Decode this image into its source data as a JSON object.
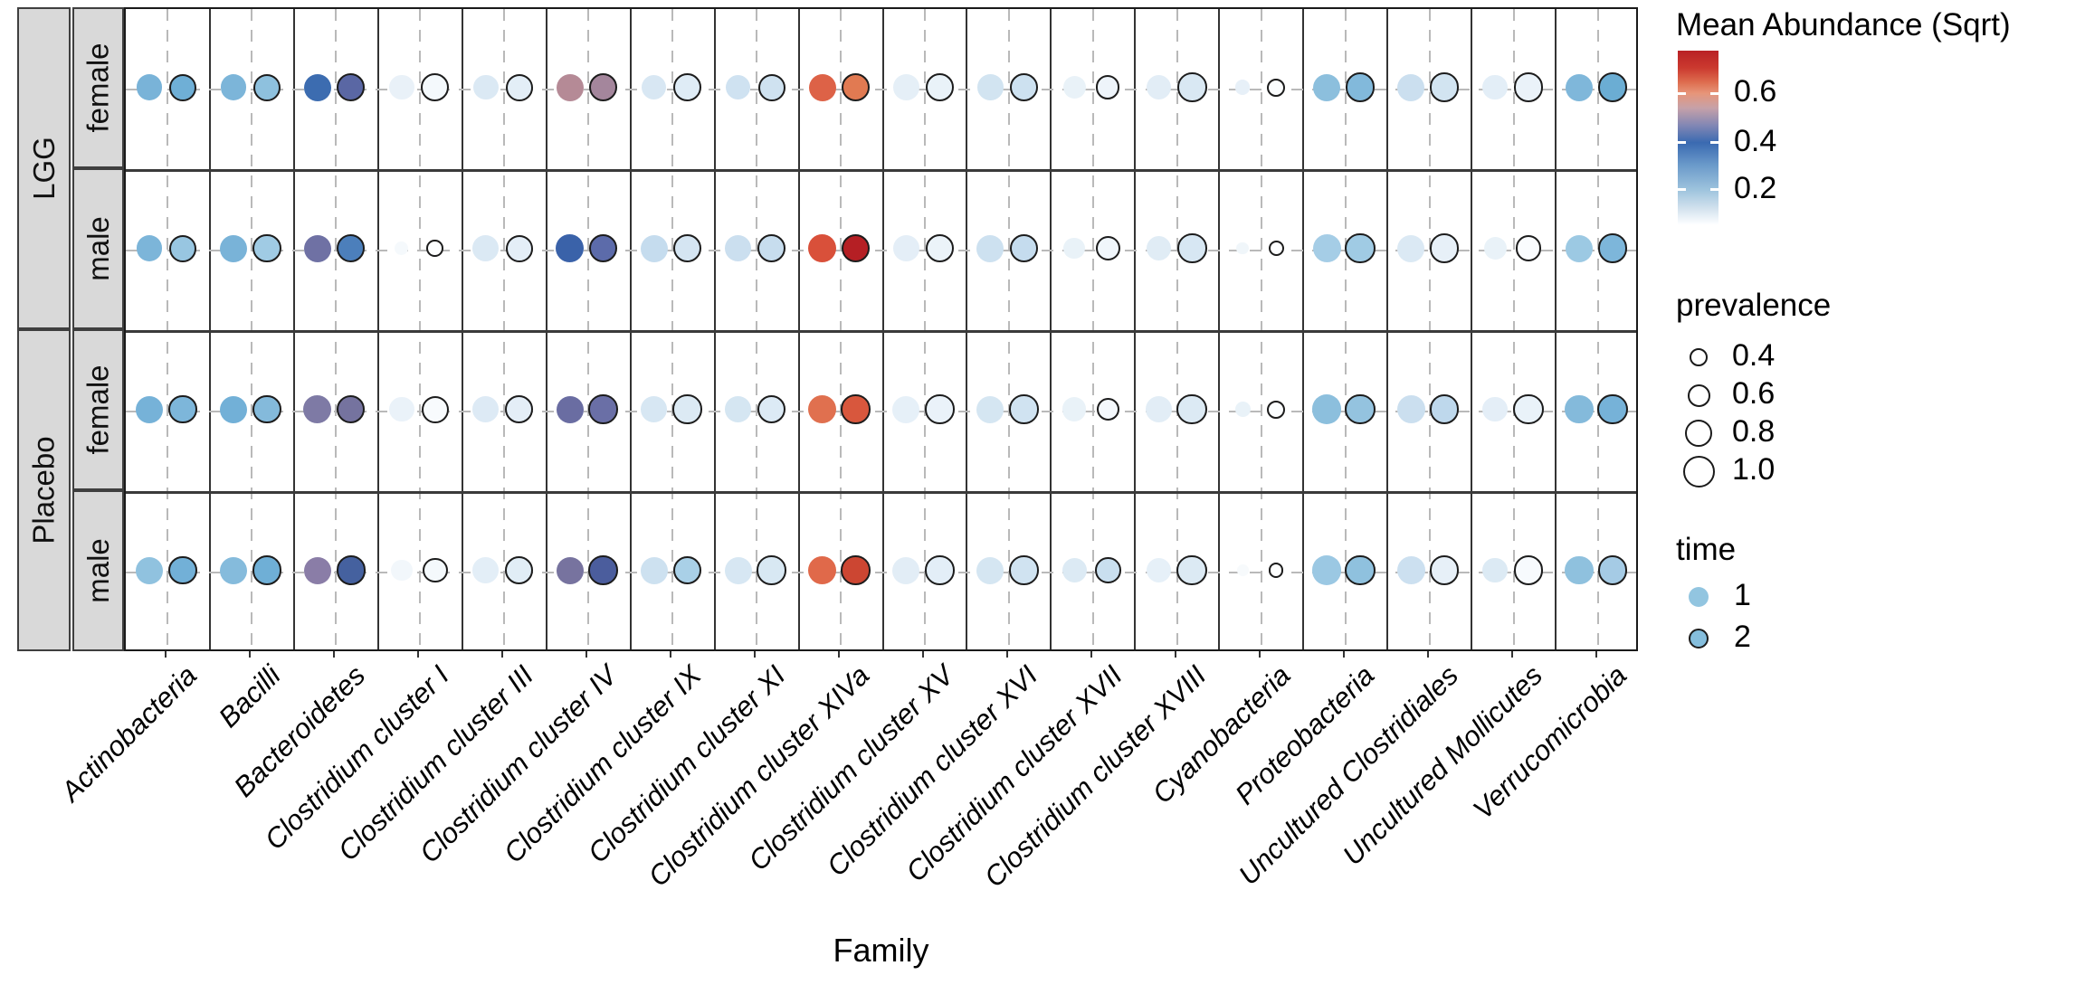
{
  "x_axis": {
    "title": "Family"
  },
  "facets": {
    "outer": [
      {
        "label": "LGG",
        "span": [
          0,
          2
        ]
      },
      {
        "label": "Placebo",
        "span": [
          2,
          4
        ]
      }
    ],
    "inner": [
      "female",
      "male",
      "female",
      "male"
    ]
  },
  "legend": {
    "abundance": {
      "title": "Mean Abundance (Sqrt)",
      "ticks": [
        {
          "label": "0.6",
          "pct": 24.5
        },
        {
          "label": "0.4",
          "pct": 53
        },
        {
          "label": "0.2",
          "pct": 80
        }
      ],
      "gradient": [
        {
          "pct": 0,
          "color": "#b92025"
        },
        {
          "pct": 10,
          "color": "#cb3a2f"
        },
        {
          "pct": 18,
          "color": "#dd6c4e"
        },
        {
          "pct": 24.5,
          "color": "#e79579"
        },
        {
          "pct": 33,
          "color": "#c6a1a8"
        },
        {
          "pct": 43,
          "color": "#8287b4"
        },
        {
          "pct": 53,
          "color": "#3a6ab1"
        },
        {
          "pct": 66,
          "color": "#6b9aca"
        },
        {
          "pct": 80,
          "color": "#9dc3dd"
        },
        {
          "pct": 91,
          "color": "#d3e2ee"
        },
        {
          "pct": 100,
          "color": "#fdfeff"
        }
      ]
    },
    "prevalence": {
      "title": "prevalence",
      "items": [
        {
          "label": "0.4",
          "value": 0.4
        },
        {
          "label": "0.6",
          "value": 0.6
        },
        {
          "label": "0.8",
          "value": 0.8
        },
        {
          "label": "1.0",
          "value": 1.0
        }
      ]
    },
    "time": {
      "title": "time",
      "items": [
        {
          "label": "1",
          "color": "#92c5e0",
          "outlined": false
        },
        {
          "label": "2",
          "color": "#85bedd",
          "outlined": true
        }
      ]
    }
  },
  "chart_data": {
    "type": "scatter",
    "subtype": "bubble-grid",
    "encoding": {
      "color": "mean_abundance_sqrt",
      "size": "prevalence",
      "outline": "time == 2"
    },
    "point_format": "t1/t2 = [abundance_sqrt_est, prevalence_est, color_hex]",
    "families": [
      "Actinobacteria",
      "Bacilli",
      "Bacteroidetes",
      "Clostridium cluster I",
      "Clostridium cluster III",
      "Clostridium cluster IV",
      "Clostridium cluster IX",
      "Clostridium cluster XI",
      "Clostridium cluster XIVa",
      "Clostridium cluster XV",
      "Clostridium cluster XVI",
      "Clostridium cluster XVII",
      "Clostridium cluster XVIII",
      "Cyanobacteria",
      "Proteobacteria",
      "Uncultured Clostridiales",
      "Uncultured Mollicutes",
      "Verrucomicrobia"
    ],
    "facet_rows": [
      {
        "group": "LGG",
        "sex": "female",
        "points": [
          {
            "t1": [
              0.3,
              0.75,
              "#79b3d8"
            ],
            "t2": [
              0.31,
              0.8,
              "#6fafd6"
            ]
          },
          {
            "t1": [
              0.3,
              0.75,
              "#7cb5d9"
            ],
            "t2": [
              0.27,
              0.8,
              "#8ec1de"
            ]
          },
          {
            "t1": [
              0.42,
              0.8,
              "#3c6cb0"
            ],
            "t2": [
              0.46,
              0.85,
              "#5a67a4"
            ]
          },
          {
            "t1": [
              0.12,
              0.7,
              "#e9f1f8"
            ],
            "t2": [
              0.07,
              0.85,
              "#f4f9fc"
            ]
          },
          {
            "t1": [
              0.15,
              0.7,
              "#dbe9f4"
            ],
            "t2": [
              0.14,
              0.8,
              "#e3eef7"
            ]
          },
          {
            "t1": [
              0.53,
              0.8,
              "#b58a96"
            ],
            "t2": [
              0.52,
              0.85,
              "#a4869c"
            ]
          },
          {
            "t1": [
              0.16,
              0.7,
              "#d8e7f3"
            ],
            "t2": [
              0.15,
              0.85,
              "#dfecf6"
            ]
          },
          {
            "t1": [
              0.18,
              0.7,
              "#cfe2f1"
            ],
            "t2": [
              0.18,
              0.8,
              "#cfe2f0"
            ]
          },
          {
            "t1": [
              0.65,
              0.8,
              "#dd6247"
            ],
            "t2": [
              0.62,
              0.85,
              "#e17a52"
            ]
          },
          {
            "t1": [
              0.13,
              0.75,
              "#e5eff7"
            ],
            "t2": [
              0.12,
              0.85,
              "#e9f2f8"
            ]
          },
          {
            "t1": [
              0.17,
              0.75,
              "#d2e4f1"
            ],
            "t2": [
              0.18,
              0.85,
              "#cde1f0"
            ]
          },
          {
            "t1": [
              0.12,
              0.6,
              "#e9f2f8"
            ],
            "t2": [
              0.1,
              0.65,
              "#eef4fa"
            ]
          },
          {
            "t1": [
              0.14,
              0.7,
              "#e2edf6"
            ],
            "t2": [
              0.16,
              0.9,
              "#d9e8f3"
            ]
          },
          {
            "t1": [
              0.12,
              0.25,
              "#e7f0f8"
            ],
            "t2": [
              0.05,
              0.4,
              "#fbfdfe"
            ]
          },
          {
            "t1": [
              0.28,
              0.8,
              "#8cbfdd"
            ],
            "t2": [
              0.29,
              0.9,
              "#82b9db"
            ]
          },
          {
            "t1": [
              0.18,
              0.8,
              "#cbdfef"
            ],
            "t2": [
              0.17,
              0.9,
              "#d2e4f1"
            ]
          },
          {
            "t1": [
              0.14,
              0.7,
              "#e3eef7"
            ],
            "t2": [
              0.12,
              0.9,
              "#eaf2f9"
            ]
          },
          {
            "t1": [
              0.3,
              0.8,
              "#7fb7da"
            ],
            "t2": [
              0.32,
              0.9,
              "#6badd3"
            ]
          }
        ]
      },
      {
        "group": "LGG",
        "sex": "male",
        "points": [
          {
            "t1": [
              0.3,
              0.75,
              "#7cb5d9"
            ],
            "t2": [
              0.26,
              0.8,
              "#98c6e1"
            ]
          },
          {
            "t1": [
              0.3,
              0.8,
              "#79b3d8"
            ],
            "t2": [
              0.25,
              0.85,
              "#a0cbe4"
            ]
          },
          {
            "t1": [
              0.47,
              0.8,
              "#6f71a4"
            ],
            "t2": [
              0.37,
              0.85,
              "#4c7fbb"
            ]
          },
          {
            "t1": [
              0.06,
              0.2,
              "#f5f9fc"
            ],
            "t2": [
              0.03,
              0.35,
              "#fdfeff"
            ]
          },
          {
            "t1": [
              0.15,
              0.75,
              "#dbe9f4"
            ],
            "t2": [
              0.14,
              0.8,
              "#e4eef7"
            ]
          },
          {
            "t1": [
              0.43,
              0.85,
              "#3a62a9"
            ],
            "t2": [
              0.45,
              0.85,
              "#5c6baa"
            ]
          },
          {
            "t1": [
              0.2,
              0.8,
              "#c5dcee"
            ],
            "t2": [
              0.17,
              0.85,
              "#d5e5f2"
            ]
          },
          {
            "t1": [
              0.18,
              0.75,
              "#cbdfef"
            ],
            "t2": [
              0.19,
              0.85,
              "#c7ddee"
            ]
          },
          {
            "t1": [
              0.68,
              0.85,
              "#d9503a"
            ],
            "t2": [
              0.78,
              0.85,
              "#b51f24"
            ]
          },
          {
            "t1": [
              0.14,
              0.75,
              "#e4eef7"
            ],
            "t2": [
              0.11,
              0.85,
              "#ebf3f9"
            ]
          },
          {
            "t1": [
              0.18,
              0.8,
              "#cde1f0"
            ],
            "t2": [
              0.19,
              0.85,
              "#c5dcee"
            ]
          },
          {
            "t1": [
              0.12,
              0.55,
              "#e9f2f8"
            ],
            "t2": [
              0.09,
              0.7,
              "#f0f6fb"
            ]
          },
          {
            "t1": [
              0.14,
              0.7,
              "#e0ecf5"
            ],
            "t2": [
              0.16,
              0.9,
              "#d7e7f3"
            ]
          },
          {
            "t1": [
              0.08,
              0.15,
              "#f0f6fa"
            ],
            "t2": [
              0.03,
              0.3,
              "#fdfeff"
            ]
          },
          {
            "t1": [
              0.24,
              0.85,
              "#a5cde6"
            ],
            "t2": [
              0.25,
              0.95,
              "#a0cbe4"
            ]
          },
          {
            "t1": [
              0.15,
              0.8,
              "#dbe9f4"
            ],
            "t2": [
              0.13,
              0.9,
              "#e7f0f8"
            ]
          },
          {
            "t1": [
              0.12,
              0.6,
              "#e9f2f8"
            ],
            "t2": [
              0.05,
              0.75,
              "#fafcfe"
            ]
          },
          {
            "t1": [
              0.25,
              0.8,
              "#9cc9e3"
            ],
            "t2": [
              0.3,
              0.9,
              "#7db6da"
            ]
          }
        ]
      },
      {
        "group": "Placebo",
        "sex": "female",
        "points": [
          {
            "t1": [
              0.31,
              0.8,
              "#76b2d8"
            ],
            "t2": [
              0.3,
              0.85,
              "#7db6da"
            ]
          },
          {
            "t1": [
              0.31,
              0.8,
              "#72b0d7"
            ],
            "t2": [
              0.29,
              0.85,
              "#84badb"
            ]
          },
          {
            "t1": [
              0.47,
              0.85,
              "#7e7aa5"
            ],
            "t2": [
              0.47,
              0.85,
              "#75739f"
            ]
          },
          {
            "t1": [
              0.12,
              0.7,
              "#eaf2f9"
            ],
            "t2": [
              0.05,
              0.8,
              "#f8fbfd"
            ]
          },
          {
            "t1": [
              0.15,
              0.75,
              "#ddeaf5"
            ],
            "t2": [
              0.14,
              0.85,
              "#e4eef7"
            ]
          },
          {
            "t1": [
              0.48,
              0.8,
              "#6a6da2"
            ],
            "t2": [
              0.48,
              0.9,
              "#6a6fa6"
            ]
          },
          {
            "t1": [
              0.16,
              0.75,
              "#d7e7f3"
            ],
            "t2": [
              0.15,
              0.9,
              "#dceaf4"
            ]
          },
          {
            "t1": [
              0.17,
              0.75,
              "#d5e6f2"
            ],
            "t2": [
              0.15,
              0.85,
              "#dceaf5"
            ]
          },
          {
            "t1": [
              0.63,
              0.85,
              "#e0704f"
            ],
            "t2": [
              0.67,
              0.9,
              "#d8573d"
            ]
          },
          {
            "t1": [
              0.13,
              0.8,
              "#e6f0f8"
            ],
            "t2": [
              0.12,
              0.9,
              "#eaf2f9"
            ]
          },
          {
            "t1": [
              0.17,
              0.8,
              "#d5e6f2"
            ],
            "t2": [
              0.18,
              0.9,
              "#d0e3f1"
            ]
          },
          {
            "t1": [
              0.12,
              0.65,
              "#e9f2f8"
            ],
            "t2": [
              0.07,
              0.6,
              "#f4f8fc"
            ]
          },
          {
            "t1": [
              0.14,
              0.75,
              "#e2edf6"
            ],
            "t2": [
              0.15,
              0.95,
              "#dceaf4"
            ]
          },
          {
            "t1": [
              0.12,
              0.3,
              "#e9f2f8"
            ],
            "t2": [
              0.04,
              0.4,
              "#fbfdfe"
            ]
          },
          {
            "t1": [
              0.28,
              0.9,
              "#8cbfdd"
            ],
            "t2": [
              0.27,
              0.95,
              "#94c3df"
            ]
          },
          {
            "t1": [
              0.18,
              0.85,
              "#cbdfef"
            ],
            "t2": [
              0.21,
              0.9,
              "#bed8ec"
            ]
          },
          {
            "t1": [
              0.14,
              0.7,
              "#e4eef7"
            ],
            "t2": [
              0.12,
              0.95,
              "#e9f2f9"
            ]
          },
          {
            "t1": [
              0.29,
              0.85,
              "#84badb"
            ],
            "t2": [
              0.31,
              0.95,
              "#76b2d8"
            ]
          }
        ]
      },
      {
        "group": "Placebo",
        "sex": "male",
        "points": [
          {
            "t1": [
              0.27,
              0.8,
              "#90c2df"
            ],
            "t2": [
              0.31,
              0.85,
              "#72b0d7"
            ]
          },
          {
            "t1": [
              0.29,
              0.8,
              "#85bbdc"
            ],
            "t2": [
              0.31,
              0.9,
              "#6fafd6"
            ]
          },
          {
            "t1": [
              0.48,
              0.8,
              "#8a7da7"
            ],
            "t2": [
              0.44,
              0.9,
              "#45619f"
            ]
          },
          {
            "t1": [
              0.08,
              0.55,
              "#f2f7fb"
            ],
            "t2": [
              0.07,
              0.7,
              "#f4f9fc"
            ]
          },
          {
            "t1": [
              0.14,
              0.75,
              "#e3eef7"
            ],
            "t2": [
              0.14,
              0.85,
              "#e1edf6"
            ]
          },
          {
            "t1": [
              0.47,
              0.8,
              "#77739f"
            ],
            "t2": [
              0.44,
              0.9,
              "#4b5d9d"
            ]
          },
          {
            "t1": [
              0.18,
              0.8,
              "#cde1f0"
            ],
            "t2": [
              0.24,
              0.85,
              "#a9d0e7"
            ]
          },
          {
            "t1": [
              0.16,
              0.8,
              "#d7e7f3"
            ],
            "t2": [
              0.16,
              0.9,
              "#d8e8f3"
            ]
          },
          {
            "t1": [
              0.64,
              0.85,
              "#e0694a"
            ],
            "t2": [
              0.7,
              0.9,
              "#cc4632"
            ]
          },
          {
            "t1": [
              0.14,
              0.8,
              "#e2edf6"
            ],
            "t2": [
              0.14,
              0.9,
              "#e3eef7"
            ]
          },
          {
            "t1": [
              0.17,
              0.8,
              "#d5e6f2"
            ],
            "t2": [
              0.18,
              0.9,
              "#d0e3f1"
            ]
          },
          {
            "t1": [
              0.15,
              0.7,
              "#dceaf4"
            ],
            "t2": [
              0.19,
              0.75,
              "#c9dfef"
            ]
          },
          {
            "t1": [
              0.13,
              0.7,
              "#e6f0f8"
            ],
            "t2": [
              0.15,
              0.95,
              "#dceaf4"
            ]
          },
          {
            "t1": [
              0.04,
              0.1,
              "#f7fafc"
            ],
            "t2": [
              0.02,
              0.25,
              "#feffff"
            ]
          },
          {
            "t1": [
              0.26,
              0.9,
              "#9bc8e3"
            ],
            "t2": [
              0.28,
              0.95,
              "#8fc1de"
            ]
          },
          {
            "t1": [
              0.18,
              0.85,
              "#cce0f0"
            ],
            "t2": [
              0.13,
              0.9,
              "#e7f0f8"
            ]
          },
          {
            "t1": [
              0.15,
              0.7,
              "#dceaf4"
            ],
            "t2": [
              0.05,
              0.9,
              "#f7fafd"
            ]
          },
          {
            "t1": [
              0.28,
              0.85,
              "#8fc1de"
            ],
            "t2": [
              0.24,
              0.9,
              "#a5cbe5"
            ]
          }
        ]
      }
    ]
  }
}
